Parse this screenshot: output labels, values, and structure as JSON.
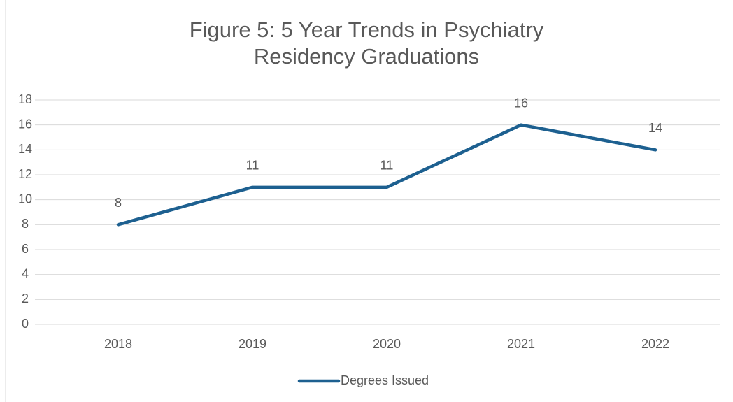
{
  "chart_data": {
    "type": "line",
    "title": "Figure 5: 5 Year Trends in Psychiatry Residency Graduations",
    "categories": [
      "2018",
      "2019",
      "2020",
      "2021",
      "2022"
    ],
    "series": [
      {
        "name": "Degrees Issued",
        "color": "#1d6090",
        "values": [
          8,
          11,
          11,
          16,
          14
        ]
      }
    ],
    "ylim": [
      0,
      18
    ],
    "yticks": [
      0,
      2,
      4,
      6,
      8,
      10,
      12,
      14,
      16,
      18
    ],
    "grid": true,
    "legend": "bottom",
    "data_labels": true
  }
}
